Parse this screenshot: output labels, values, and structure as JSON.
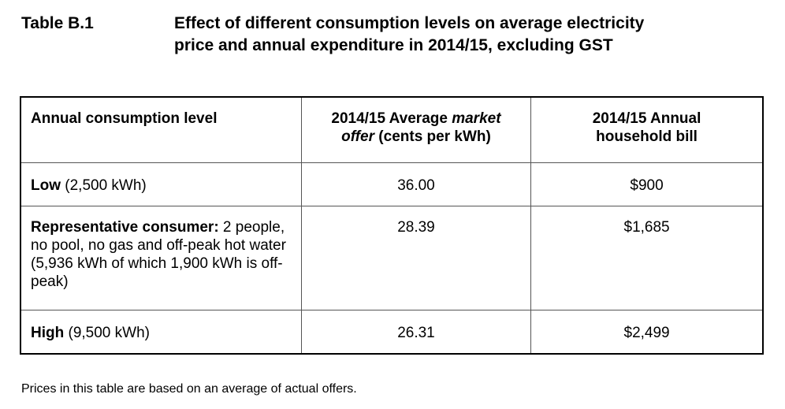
{
  "caption": {
    "label": "Table B.1",
    "title_line1": "Effect of different consumption levels on average electricity",
    "title_line2": "price and annual expenditure in 2014/15, excluding GST"
  },
  "table": {
    "headers": {
      "consumption": "Annual consumption level",
      "price_part1": "2014/15 Average ",
      "price_italic1": "market",
      "price_italic2": "offer",
      "price_part2": " (cents per kWh)",
      "bill_line1": "2014/15 Annual",
      "bill_line2": "household bill"
    },
    "rows": [
      {
        "level_bold": "Low",
        "level_text": " (2,500 kWh)",
        "price": "36.00",
        "bill": "$900"
      },
      {
        "level_bold": "Representative consumer:",
        "level_text": " 2 people, no pool, no gas and off-peak hot water (5,936 kWh of which 1,900 kWh is off-peak)",
        "price": "28.39",
        "bill": "$1,685"
      },
      {
        "level_bold": "High",
        "level_text": " (9,500 kWh)",
        "price": "26.31",
        "bill": "$2,499"
      }
    ]
  },
  "footnote": "Prices in this table are based on an average of actual offers."
}
